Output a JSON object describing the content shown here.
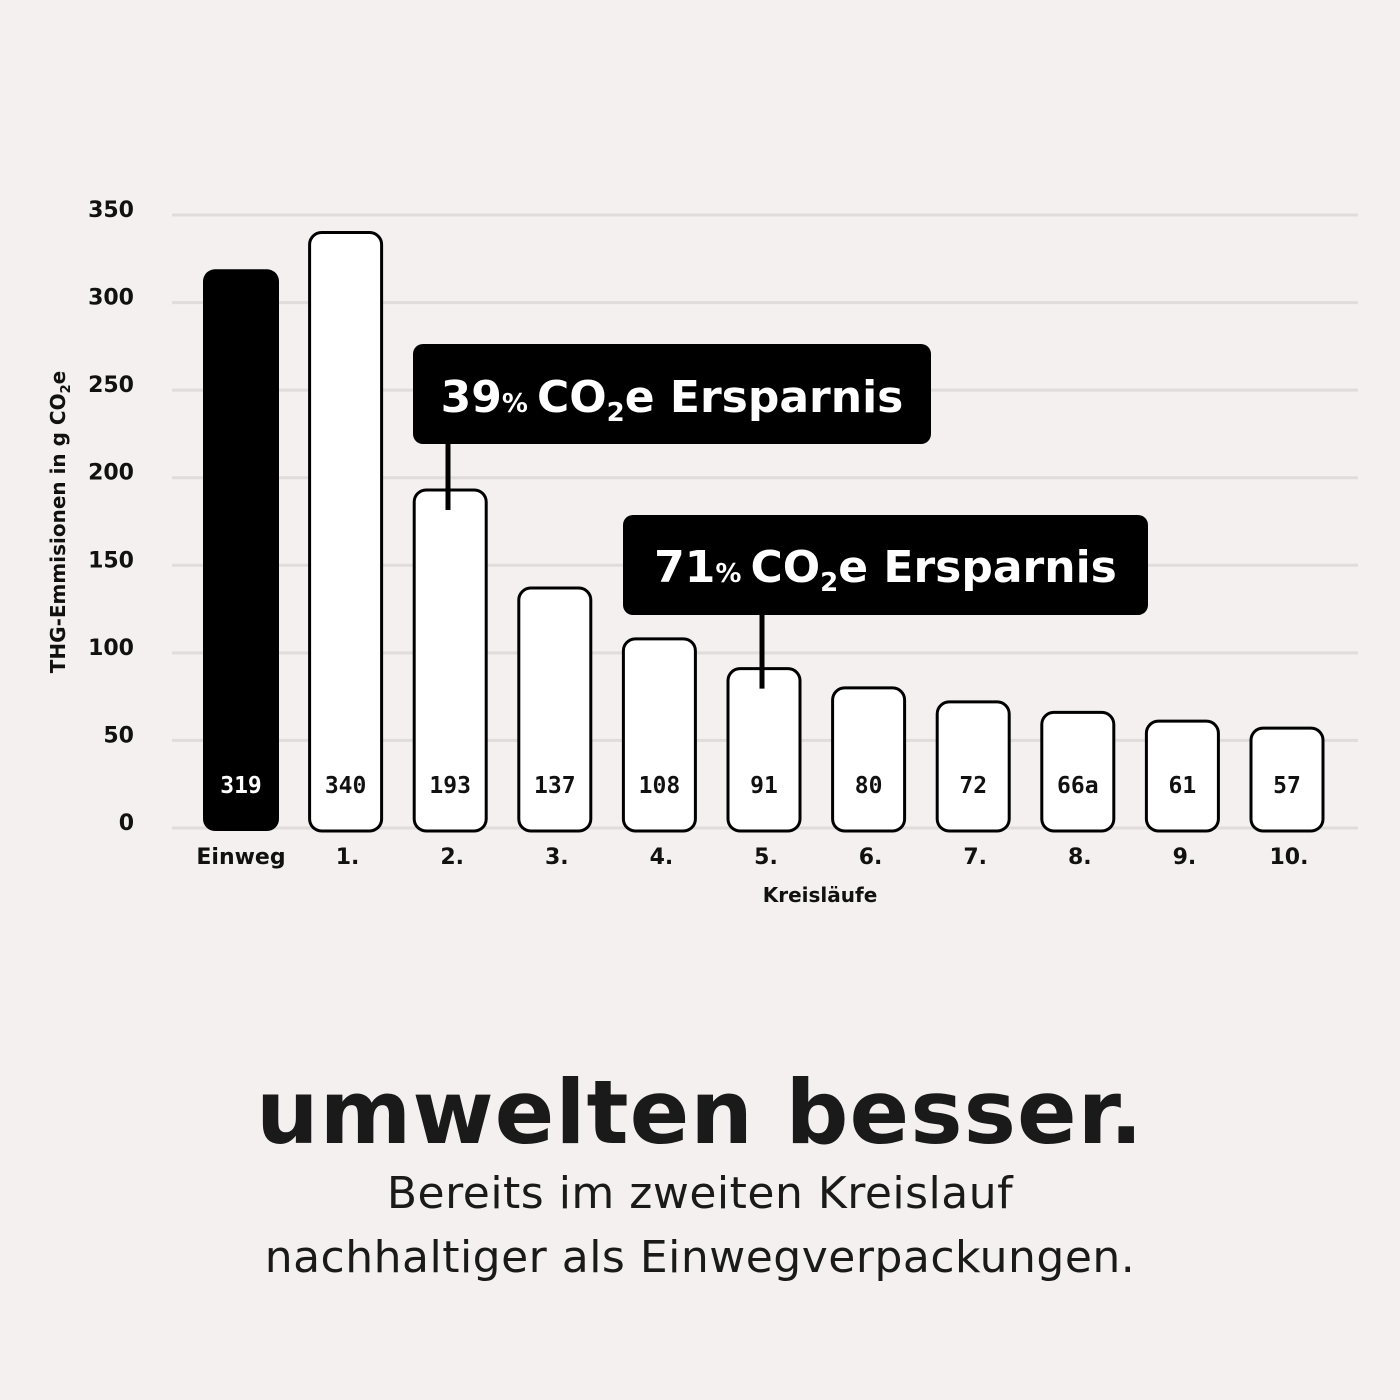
{
  "chart_data": {
    "type": "bar",
    "categories": [
      "Einweg",
      "1.",
      "2.",
      "3.",
      "4.",
      "5.",
      "6.",
      "7.",
      "8.",
      "9.",
      "10."
    ],
    "values": [
      319,
      340,
      193,
      137,
      108,
      91,
      80,
      72,
      66,
      61,
      57
    ],
    "value_labels": [
      "319",
      "340",
      "193",
      "137",
      "108",
      "91",
      "80",
      "72",
      "66a",
      "61",
      "57"
    ],
    "title": "",
    "xlabel": "Kreisläufe",
    "ylabel": "THG-Emmisionen in g CO",
    "ylabel_sub": "2",
    "ylabel_suffix": "e",
    "ylim": [
      0,
      350
    ],
    "yticks": [
      0,
      50,
      100,
      150,
      200,
      250,
      300,
      350
    ],
    "grid": true,
    "legend": "none",
    "highlight_color": "#000000",
    "bar_fill": "#ffffff",
    "annotations": [
      {
        "pct": "39",
        "pct_sign": "%",
        "co": "CO",
        "sub": "2",
        "rest": "e Ersparnis",
        "category": "2."
      },
      {
        "pct": "71",
        "pct_sign": "%",
        "co": "CO",
        "sub": "2",
        "rest": "e Ersparnis",
        "category": "5."
      }
    ]
  },
  "footer": {
    "headline": "umwelten besser.",
    "line1": "Bereits im zweiten Kreislauf",
    "line2": "nachhaltiger als Einwegverpackungen."
  }
}
